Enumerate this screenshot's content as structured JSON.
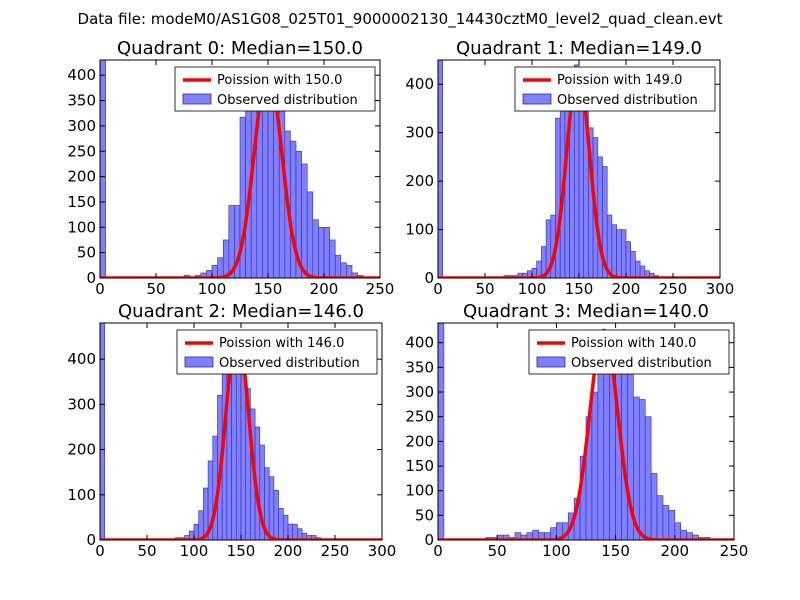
{
  "suptitle": "Data file: modeM0/AS1G08_025T01_9000002130_14430cztM0_level2_quad_clean.evt",
  "colors": {
    "bar": "#7f7fff",
    "bar_edge": "#2f2f9f",
    "curve": "#ff0000"
  },
  "chart_data": [
    {
      "type": "bar",
      "title": "Quadrant 0: Median=150.0",
      "xlim": [
        0,
        250
      ],
      "ylim": [
        0,
        430
      ],
      "xticks": [
        0,
        50,
        100,
        150,
        200,
        250
      ],
      "yticks": [
        0,
        50,
        100,
        150,
        200,
        250,
        300,
        350,
        400
      ],
      "legend": {
        "location": "top-right",
        "entries": [
          "Poission with 150.0",
          "Observed distribution"
        ]
      },
      "bin_width": 5,
      "hist": [
        [
          0,
          430
        ],
        [
          75,
          5
        ],
        [
          85,
          5
        ],
        [
          90,
          10
        ],
        [
          95,
          15
        ],
        [
          100,
          25
        ],
        [
          105,
          40
        ],
        [
          110,
          75
        ],
        [
          115,
          143
        ],
        [
          120,
          143
        ],
        [
          125,
          317
        ],
        [
          130,
          330
        ],
        [
          135,
          330
        ],
        [
          140,
          345
        ],
        [
          145,
          360
        ],
        [
          150,
          360
        ],
        [
          155,
          345
        ],
        [
          160,
          330
        ],
        [
          165,
          290
        ],
        [
          170,
          270
        ],
        [
          175,
          250
        ],
        [
          180,
          225
        ],
        [
          185,
          170
        ],
        [
          190,
          115
        ],
        [
          195,
          100
        ],
        [
          200,
          100
        ],
        [
          205,
          75
        ],
        [
          210,
          45
        ],
        [
          215,
          30
        ],
        [
          220,
          25
        ],
        [
          225,
          10
        ],
        [
          230,
          5
        ]
      ],
      "poisson_mean": 150.0,
      "poisson_peak": 410
    },
    {
      "type": "bar",
      "title": "Quadrant 1: Median=149.0",
      "xlim": [
        0,
        300
      ],
      "ylim": [
        0,
        450
      ],
      "xticks": [
        0,
        50,
        100,
        150,
        200,
        250,
        300
      ],
      "yticks": [
        0,
        100,
        200,
        300,
        400
      ],
      "legend": {
        "location": "top-right",
        "entries": [
          "Poission with 149.0",
          "Observed distribution"
        ]
      },
      "bin_width": 5,
      "hist": [
        [
          0,
          450
        ],
        [
          70,
          5
        ],
        [
          75,
          5
        ],
        [
          80,
          5
        ],
        [
          85,
          10
        ],
        [
          90,
          10
        ],
        [
          95,
          15
        ],
        [
          100,
          20
        ],
        [
          105,
          35
        ],
        [
          110,
          65
        ],
        [
          115,
          120
        ],
        [
          120,
          130
        ],
        [
          125,
          330
        ],
        [
          130,
          410
        ],
        [
          135,
          420
        ],
        [
          140,
          425
        ],
        [
          145,
          440
        ],
        [
          150,
          420
        ],
        [
          155,
          380
        ],
        [
          160,
          310
        ],
        [
          165,
          290
        ],
        [
          170,
          250
        ],
        [
          175,
          230
        ],
        [
          180,
          130
        ],
        [
          185,
          110
        ],
        [
          190,
          100
        ],
        [
          195,
          100
        ],
        [
          200,
          75
        ],
        [
          205,
          55
        ],
        [
          210,
          35
        ],
        [
          215,
          25
        ],
        [
          220,
          15
        ],
        [
          225,
          10
        ],
        [
          230,
          5
        ]
      ],
      "poisson_mean": 149.0,
      "poisson_peak": 425
    },
    {
      "type": "bar",
      "title": "Quadrant 2: Median=146.0",
      "xlim": [
        0,
        300
      ],
      "ylim": [
        0,
        480
      ],
      "xticks": [
        0,
        50,
        100,
        150,
        200,
        250,
        300
      ],
      "yticks": [
        0,
        100,
        200,
        300,
        400
      ],
      "legend": {
        "location": "top-right",
        "entries": [
          "Poission with 146.0",
          "Observed distribution"
        ]
      },
      "bin_width": 5,
      "hist": [
        [
          0,
          480
        ],
        [
          80,
          5
        ],
        [
          85,
          5
        ],
        [
          90,
          10
        ],
        [
          95,
          20
        ],
        [
          100,
          35
        ],
        [
          105,
          65
        ],
        [
          110,
          115
        ],
        [
          115,
          175
        ],
        [
          120,
          230
        ],
        [
          125,
          320
        ],
        [
          130,
          390
        ],
        [
          135,
          395
        ],
        [
          140,
          400
        ],
        [
          145,
          415
        ],
        [
          150,
          400
        ],
        [
          155,
          335
        ],
        [
          160,
          290
        ],
        [
          165,
          250
        ],
        [
          170,
          210
        ],
        [
          175,
          160
        ],
        [
          180,
          140
        ],
        [
          185,
          110
        ],
        [
          190,
          70
        ],
        [
          195,
          55
        ],
        [
          200,
          35
        ],
        [
          205,
          35
        ],
        [
          210,
          25
        ],
        [
          215,
          15
        ],
        [
          220,
          10
        ],
        [
          225,
          10
        ],
        [
          230,
          5
        ]
      ],
      "poisson_mean": 146.0,
      "poisson_peak": 460
    },
    {
      "type": "bar",
      "title": "Quadrant 3: Median=140.0",
      "xlim": [
        0,
        250
      ],
      "ylim": [
        0,
        440
      ],
      "xticks": [
        0,
        50,
        100,
        150,
        200,
        250
      ],
      "yticks": [
        0,
        50,
        100,
        150,
        200,
        250,
        300,
        350,
        400
      ],
      "legend": {
        "location": "top-right",
        "entries": [
          "Poission with 140.0",
          "Observed distribution"
        ]
      },
      "bin_width": 5,
      "hist": [
        [
          0,
          440
        ],
        [
          40,
          5
        ],
        [
          45,
          5
        ],
        [
          50,
          10
        ],
        [
          55,
          10
        ],
        [
          60,
          5
        ],
        [
          65,
          15
        ],
        [
          70,
          10
        ],
        [
          75,
          15
        ],
        [
          80,
          20
        ],
        [
          85,
          15
        ],
        [
          90,
          15
        ],
        [
          95,
          25
        ],
        [
          100,
          35
        ],
        [
          105,
          35
        ],
        [
          110,
          55
        ],
        [
          115,
          85
        ],
        [
          120,
          170
        ],
        [
          125,
          250
        ],
        [
          130,
          300
        ],
        [
          135,
          375
        ],
        [
          140,
          390
        ],
        [
          145,
          395
        ],
        [
          150,
          385
        ],
        [
          155,
          400
        ],
        [
          160,
          390
        ],
        [
          165,
          290
        ],
        [
          170,
          285
        ],
        [
          175,
          250
        ],
        [
          180,
          135
        ],
        [
          185,
          90
        ],
        [
          190,
          70
        ],
        [
          195,
          60
        ],
        [
          200,
          35
        ],
        [
          205,
          20
        ],
        [
          210,
          15
        ],
        [
          215,
          10
        ],
        [
          220,
          5
        ],
        [
          225,
          5
        ]
      ],
      "poisson_mean": 140.0,
      "poisson_peak": 425
    }
  ]
}
